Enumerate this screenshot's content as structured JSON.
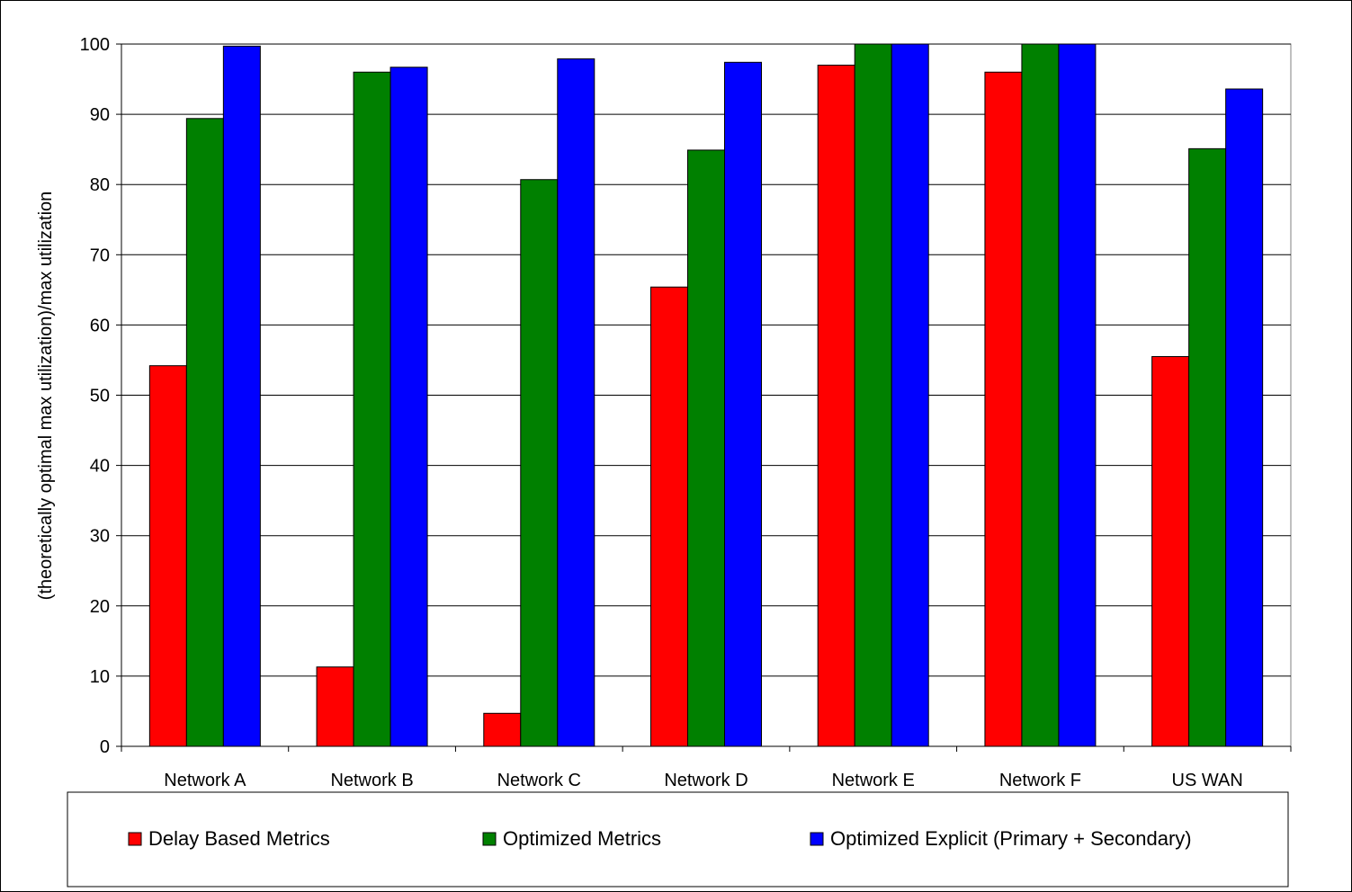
{
  "chart_data": {
    "type": "bar",
    "title": "",
    "xlabel": "",
    "ylabel": "(theoretically optimal max utilization)/max utilization",
    "ylim": [
      0,
      100
    ],
    "yticks": [
      0,
      10,
      20,
      30,
      40,
      50,
      60,
      70,
      80,
      90,
      100
    ],
    "grid": true,
    "legend_position": "bottom",
    "categories": [
      "Network A",
      "Network B",
      "Network C",
      "Network D",
      "Network E",
      "Network F",
      "US WAN"
    ],
    "series": [
      {
        "name": "Delay Based Metrics",
        "color": "#ff0000",
        "values": [
          54.2,
          11.3,
          4.7,
          65.4,
          97.0,
          96.0,
          55.5
        ]
      },
      {
        "name": "Optimized Metrics",
        "color": "#008000",
        "values": [
          89.4,
          96.0,
          80.7,
          84.9,
          100,
          100,
          85.1
        ]
      },
      {
        "name": "Optimized Explicit (Primary + Secondary)",
        "color": "#0000ff",
        "values": [
          99.7,
          96.7,
          97.9,
          97.4,
          100,
          100,
          93.6
        ]
      }
    ]
  }
}
